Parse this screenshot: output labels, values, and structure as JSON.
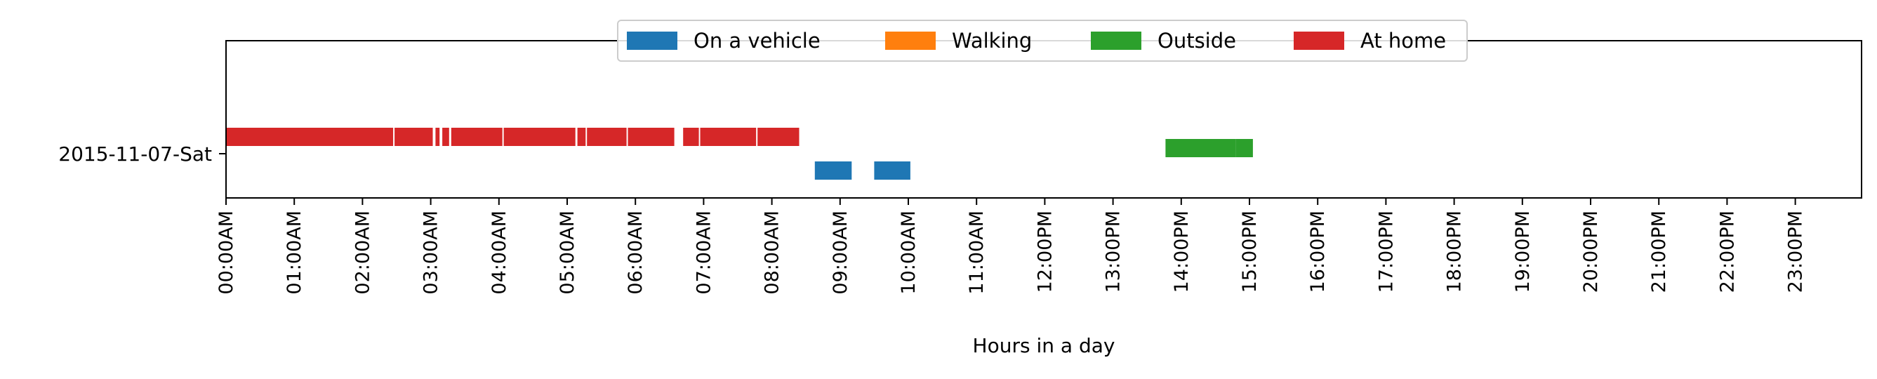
{
  "chart_data": {
    "type": "timeline",
    "title": "",
    "xlabel": "Hours in a day",
    "ylabel": "",
    "xlim": [
      0,
      24
    ],
    "x_unit": "hours",
    "grid": false,
    "legend_placement": "top-center",
    "categories": [
      "2015-11-07-Sat"
    ],
    "x_tick_labels": [
      "00:00AM",
      "01:00AM",
      "02:00AM",
      "03:00AM",
      "04:00AM",
      "05:00AM",
      "06:00AM",
      "07:00AM",
      "08:00AM",
      "09:00AM",
      "10:00AM",
      "11:00AM",
      "12:00PM",
      "13:00PM",
      "14:00PM",
      "15:00PM",
      "16:00PM",
      "17:00PM",
      "18:00PM",
      "19:00PM",
      "20:00PM",
      "21:00PM",
      "22:00PM",
      "23:00PM"
    ],
    "series": [
      {
        "name": "On a vehicle",
        "color": "#1f77b4",
        "segments": [
          [
            8.63,
            9.17
          ],
          [
            9.5,
            10.03
          ]
        ]
      },
      {
        "name": "Walking",
        "color": "#ff7f0e",
        "segments": []
      },
      {
        "name": "Outside",
        "color": "#2ca02c",
        "segments": [
          [
            13.77,
            14.8
          ],
          [
            14.8,
            15.05
          ]
        ]
      },
      {
        "name": "At home",
        "color": "#d62728",
        "segments": [
          [
            0.0,
            2.45
          ],
          [
            2.47,
            3.03
          ],
          [
            3.07,
            3.13
          ],
          [
            3.17,
            3.27
          ],
          [
            3.3,
            4.05
          ],
          [
            4.07,
            5.12
          ],
          [
            5.15,
            5.27
          ],
          [
            5.29,
            5.87
          ],
          [
            5.89,
            6.57
          ],
          [
            6.7,
            6.93
          ],
          [
            6.95,
            7.77
          ],
          [
            7.79,
            8.4
          ]
        ]
      }
    ]
  }
}
